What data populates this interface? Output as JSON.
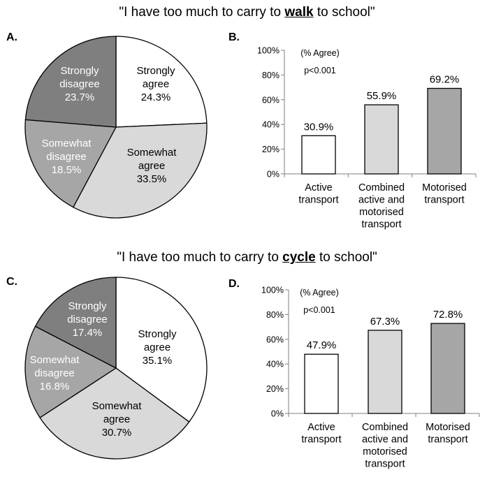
{
  "titles": [
    {
      "before": "\"I have too much to carry to ",
      "keyword": "walk",
      "after": " to school\""
    },
    {
      "before": "\"I have too much to carry to ",
      "keyword": "cycle",
      "after": " to school\""
    }
  ],
  "colors": {
    "strongly_agree": "#ffffff",
    "somewhat_agree": "#d9d9d9",
    "somewhat_disagree": "#a6a6a6",
    "strongly_disagree": "#7f7f7f",
    "active": "#ffffff",
    "combined": "#d9d9d9",
    "motorised": "#a6a6a6",
    "stroke": "#000000"
  },
  "chart_data": [
    {
      "panel": "A.",
      "type": "pie",
      "slices": [
        {
          "label_lines": [
            "Strongly",
            "agree"
          ],
          "value": 24.3,
          "value_label": "24.3%",
          "color": "#ffffff",
          "text_color": "#000000"
        },
        {
          "label_lines": [
            "Somewhat",
            "agree"
          ],
          "value": 33.5,
          "value_label": "33.5%",
          "color": "#d9d9d9",
          "text_color": "#000000"
        },
        {
          "label_lines": [
            "Somewhat",
            "disagree"
          ],
          "value": 18.5,
          "value_label": "18.5%",
          "color": "#a6a6a6",
          "text_color": "#ffffff"
        },
        {
          "label_lines": [
            "Strongly",
            "disagree"
          ],
          "value": 23.7,
          "value_label": "23.7%",
          "color": "#7f7f7f",
          "text_color": "#ffffff"
        }
      ]
    },
    {
      "panel": "B.",
      "type": "bar",
      "annotation_lines": [
        "(% Agree)",
        "p<0.001"
      ],
      "categories": [
        [
          "Active",
          "transport"
        ],
        [
          "Combined",
          "active and",
          "motorised",
          "transport"
        ],
        [
          "Motorised",
          "transport"
        ]
      ],
      "values": [
        30.9,
        55.9,
        69.2
      ],
      "value_labels": [
        "30.9%",
        "55.9%",
        "69.2%"
      ],
      "colors": [
        "#ffffff",
        "#d9d9d9",
        "#a6a6a6"
      ],
      "ylim": [
        0,
        100
      ],
      "yticks": [
        0,
        20,
        40,
        60,
        80,
        100
      ],
      "ytick_labels": [
        "0%",
        "20%",
        "40%",
        "60%",
        "80%",
        "100%"
      ],
      "grid": false
    },
    {
      "panel": "C.",
      "type": "pie",
      "slices": [
        {
          "label_lines": [
            "Strongly",
            "agree"
          ],
          "value": 35.1,
          "value_label": "35.1%",
          "color": "#ffffff",
          "text_color": "#000000"
        },
        {
          "label_lines": [
            "Somewhat",
            "agree"
          ],
          "value": 30.7,
          "value_label": "30.7%",
          "color": "#d9d9d9",
          "text_color": "#000000"
        },
        {
          "label_lines": [
            "Somewhat",
            "disagree"
          ],
          "value": 16.8,
          "value_label": "16.8%",
          "color": "#a6a6a6",
          "text_color": "#ffffff"
        },
        {
          "label_lines": [
            "Strongly",
            "disagree"
          ],
          "value": 17.4,
          "value_label": "17.4%",
          "color": "#7f7f7f",
          "text_color": "#ffffff"
        }
      ]
    },
    {
      "panel": "D.",
      "type": "bar",
      "annotation_lines": [
        "(% Agree)",
        "p<0.001"
      ],
      "categories": [
        [
          "Active",
          "transport"
        ],
        [
          "Combined",
          "active and",
          "motorised",
          "transport"
        ],
        [
          "Motorised",
          "transport"
        ]
      ],
      "values": [
        47.9,
        67.3,
        72.8
      ],
      "value_labels": [
        "47.9%",
        "67.3%",
        "72.8%"
      ],
      "colors": [
        "#ffffff",
        "#d9d9d9",
        "#a6a6a6"
      ],
      "ylim": [
        0,
        100
      ],
      "yticks": [
        0,
        20,
        40,
        60,
        80,
        100
      ],
      "ytick_labels": [
        "0%",
        "20%",
        "40%",
        "60%",
        "80%",
        "100%"
      ],
      "grid": false
    }
  ]
}
